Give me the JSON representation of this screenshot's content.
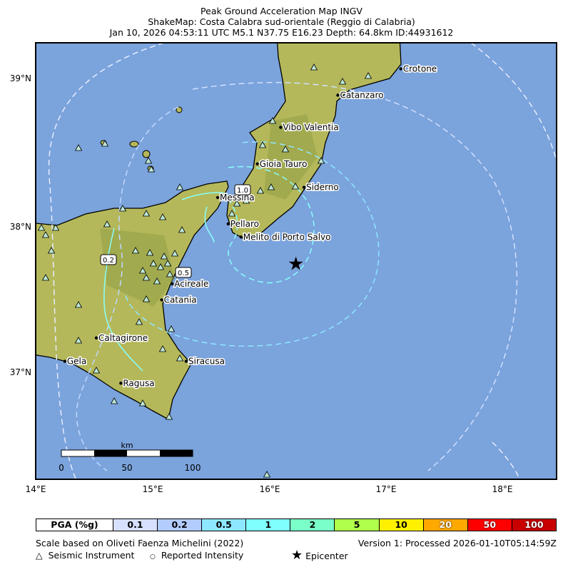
{
  "title": {
    "line1": "Peak Ground Acceleration Map INGV",
    "line2": "ShakeMap: Costa Calabra sud-orientale (Reggio di Calabria)",
    "line3": "Jan 10, 2026 04:53:11 UTC M5.1 N37.75 E16.23 Depth: 64.8km ID:44931612"
  },
  "map": {
    "lon_ticks": [
      "14°E",
      "15°E",
      "16°E",
      "17°E",
      "18°E"
    ],
    "lat_ticks": [
      "39°N",
      "38°N",
      "37°N"
    ],
    "colors": {
      "sea": "#7ba3dc",
      "land": "#b4b85a",
      "coast": "#000000"
    },
    "epicenter": {
      "lon": 16.23,
      "lat": 37.75
    },
    "cities": [
      {
        "name": "Crotone",
        "lon": 17.13,
        "lat": 39.08
      },
      {
        "name": "Catanzaro",
        "lon": 16.59,
        "lat": 38.9
      },
      {
        "name": "Vibo Valentia",
        "lon": 16.1,
        "lat": 38.68
      },
      {
        "name": "Gioia Tauro",
        "lon": 15.9,
        "lat": 38.43
      },
      {
        "name": "Siderno",
        "lon": 16.3,
        "lat": 38.27
      },
      {
        "name": "Messina",
        "lon": 15.56,
        "lat": 38.2
      },
      {
        "name": "Pellaro",
        "lon": 15.65,
        "lat": 38.02
      },
      {
        "name": "Melito di Porto Salvo",
        "lon": 15.76,
        "lat": 37.93
      },
      {
        "name": "Acireale",
        "lon": 15.17,
        "lat": 37.61
      },
      {
        "name": "Catania",
        "lon": 15.08,
        "lat": 37.5
      },
      {
        "name": "Caltagirone",
        "lon": 14.52,
        "lat": 37.24
      },
      {
        "name": "Gela",
        "lon": 14.25,
        "lat": 37.08
      },
      {
        "name": "Siracusa",
        "lon": 15.29,
        "lat": 37.08
      },
      {
        "name": "Ragusa",
        "lon": 14.73,
        "lat": 36.93
      }
    ],
    "contour_labels": [
      "1.0",
      "0.5",
      "0.2"
    ],
    "scale": {
      "unit": "km",
      "ticks": [
        "0",
        "50",
        "100"
      ]
    }
  },
  "legend": {
    "header": "PGA (%g)",
    "bins": [
      {
        "label": "0.1",
        "color": "#d7e0ff"
      },
      {
        "label": "0.2",
        "color": "#b3ccff"
      },
      {
        "label": "0.5",
        "color": "#8de8ff"
      },
      {
        "label": "1",
        "color": "#80ffff"
      },
      {
        "label": "2",
        "color": "#7affc8"
      },
      {
        "label": "5",
        "color": "#b0ff4a"
      },
      {
        "label": "10",
        "color": "#fff000"
      },
      {
        "label": "20",
        "color": "#ffa800"
      },
      {
        "label": "50",
        "color": "#ff0000"
      },
      {
        "label": "100",
        "color": "#c80000"
      }
    ]
  },
  "footer": {
    "scale_note": "Scale based on Oliveti Faenza Michelini (2022)",
    "version": "Version 1: Processed 2026-01-10T05:14:59Z",
    "instrument": "Seismic Instrument",
    "intensity": "Reported Intensity",
    "epicenter": "Epicenter"
  }
}
